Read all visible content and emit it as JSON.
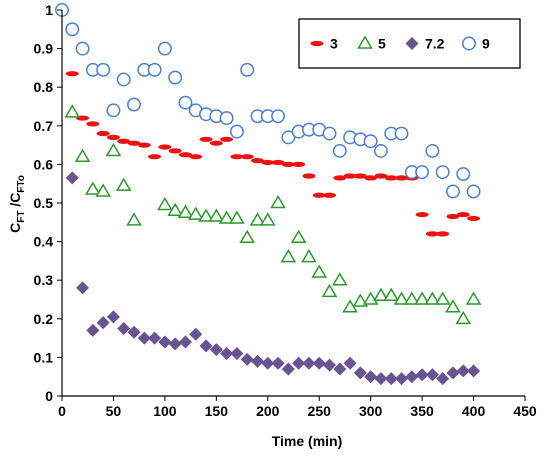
{
  "chart_data": {
    "type": "scatter",
    "xlabel": "Time (min)",
    "ylabel": {
      "main": "C",
      "sub1": "FT",
      "sep": " /C",
      "sub2": "FTo"
    },
    "xlim": [
      0,
      450
    ],
    "ylim": [
      0,
      1
    ],
    "xticks": [
      0,
      50,
      100,
      150,
      200,
      250,
      300,
      350,
      400,
      450
    ],
    "yticks": [
      0,
      0.1,
      0.2,
      0.3,
      0.4,
      0.5,
      0.6,
      0.7,
      0.8,
      0.9,
      1
    ],
    "grid": false,
    "legend_position": "top-right",
    "series": [
      {
        "name": "3",
        "marker": "red-ellipse",
        "color": "#ee1111",
        "x": [
          10,
          20,
          30,
          40,
          50,
          60,
          70,
          80,
          90,
          100,
          110,
          120,
          130,
          140,
          150,
          160,
          170,
          180,
          190,
          200,
          210,
          220,
          230,
          240,
          250,
          260,
          270,
          280,
          290,
          300,
          310,
          320,
          330,
          340,
          350,
          360,
          370,
          380,
          390,
          400
        ],
        "y": [
          0.835,
          0.72,
          0.705,
          0.68,
          0.67,
          0.66,
          0.655,
          0.65,
          0.62,
          0.645,
          0.635,
          0.625,
          0.62,
          0.665,
          0.655,
          0.665,
          0.62,
          0.62,
          0.61,
          0.605,
          0.605,
          0.6,
          0.6,
          0.57,
          0.52,
          0.52,
          0.565,
          0.57,
          0.57,
          0.565,
          0.57,
          0.565,
          0.565,
          0.565,
          0.47,
          0.42,
          0.42,
          0.465,
          0.47,
          0.46
        ]
      },
      {
        "name": "5",
        "marker": "green-triangle",
        "color": "#2a9a2a",
        "x": [
          10,
          20,
          30,
          40,
          50,
          60,
          70,
          100,
          110,
          120,
          130,
          140,
          150,
          160,
          170,
          180,
          190,
          200,
          210,
          220,
          230,
          240,
          250,
          260,
          270,
          280,
          290,
          300,
          310,
          320,
          330,
          340,
          350,
          360,
          370,
          380,
          390,
          400
        ],
        "y": [
          0.735,
          0.62,
          0.535,
          0.53,
          0.635,
          0.545,
          0.455,
          0.495,
          0.48,
          0.475,
          0.47,
          0.465,
          0.465,
          0.46,
          0.46,
          0.41,
          0.455,
          0.455,
          0.5,
          0.36,
          0.41,
          0.36,
          0.32,
          0.27,
          0.3,
          0.23,
          0.245,
          0.25,
          0.26,
          0.26,
          0.25,
          0.25,
          0.25,
          0.25,
          0.25,
          0.23,
          0.2,
          0.25
        ]
      },
      {
        "name": "7.2",
        "marker": "purple-diamond",
        "color": "#6a5392",
        "x": [
          10,
          20,
          30,
          40,
          50,
          60,
          70,
          80,
          90,
          100,
          110,
          120,
          130,
          140,
          150,
          160,
          170,
          180,
          190,
          200,
          210,
          220,
          230,
          240,
          250,
          260,
          270,
          280,
          290,
          300,
          310,
          320,
          330,
          340,
          350,
          360,
          370,
          380,
          390,
          400
        ],
        "y": [
          0.565,
          0.28,
          0.17,
          0.19,
          0.205,
          0.175,
          0.165,
          0.15,
          0.15,
          0.14,
          0.135,
          0.14,
          0.16,
          0.13,
          0.12,
          0.11,
          0.11,
          0.095,
          0.09,
          0.085,
          0.085,
          0.07,
          0.085,
          0.085,
          0.085,
          0.08,
          0.07,
          0.085,
          0.06,
          0.05,
          0.045,
          0.045,
          0.045,
          0.05,
          0.055,
          0.055,
          0.045,
          0.06,
          0.065,
          0.065
        ]
      },
      {
        "name": "9",
        "marker": "blue-open-circle",
        "color": "#4a7fd0",
        "x": [
          0,
          10,
          20,
          30,
          40,
          50,
          60,
          70,
          80,
          90,
          100,
          110,
          120,
          130,
          140,
          150,
          160,
          170,
          180,
          190,
          200,
          210,
          220,
          230,
          240,
          250,
          260,
          270,
          280,
          290,
          300,
          310,
          320,
          330,
          340,
          350,
          360,
          370,
          380,
          390,
          400
        ],
        "y": [
          1.0,
          0.95,
          0.9,
          0.845,
          0.845,
          0.74,
          0.82,
          0.755,
          0.845,
          0.845,
          0.9,
          0.825,
          0.76,
          0.74,
          0.73,
          0.725,
          0.72,
          0.685,
          0.845,
          0.725,
          0.725,
          0.725,
          0.67,
          0.685,
          0.69,
          0.69,
          0.68,
          0.635,
          0.67,
          0.665,
          0.66,
          0.635,
          0.68,
          0.68,
          0.58,
          0.58,
          0.635,
          0.58,
          0.53,
          0.575,
          0.53
        ]
      }
    ]
  }
}
